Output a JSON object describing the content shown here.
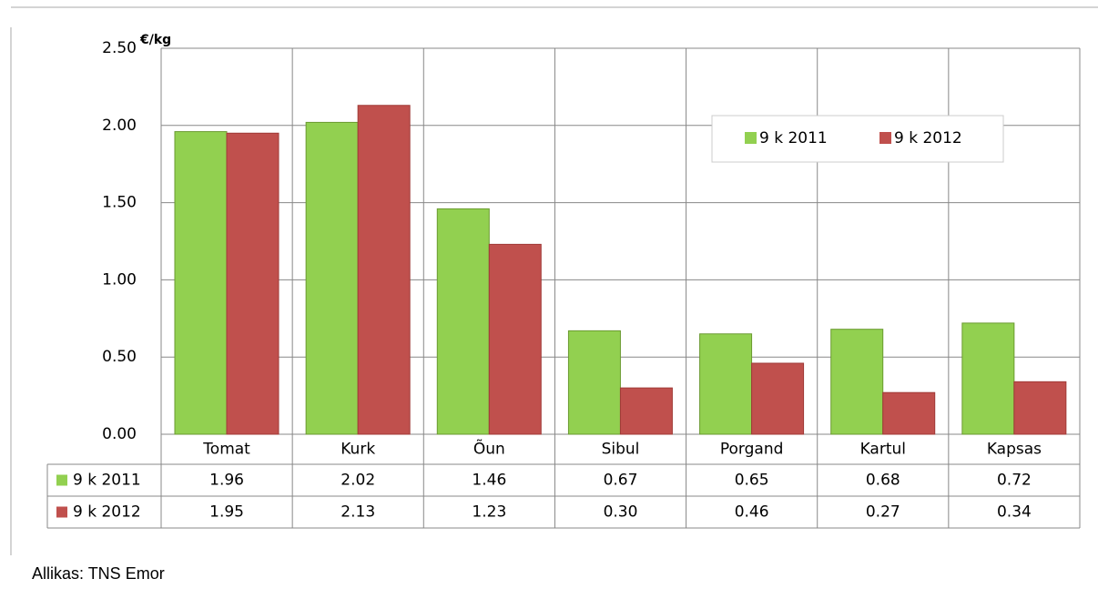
{
  "chart_data": {
    "type": "bar",
    "y_label": "€/kg",
    "categories": [
      "Tomat",
      "Kurk",
      "Õun",
      "Sibul",
      "Porgand",
      "Kartul",
      "Kapsas"
    ],
    "series": [
      {
        "name": "9 k 2011",
        "color": "#92d050",
        "values": [
          1.96,
          2.02,
          1.46,
          0.67,
          0.65,
          0.68,
          0.72
        ],
        "value_labels": [
          "1.96",
          "2.02",
          "1.46",
          "0.67",
          "0.65",
          "0.68",
          "0.72"
        ]
      },
      {
        "name": "9 k 2012",
        "color": "#c0504d",
        "values": [
          1.95,
          2.13,
          1.23,
          0.3,
          0.46,
          0.27,
          0.34
        ],
        "value_labels": [
          "1.95",
          "2.13",
          "1.23",
          "0.30",
          "0.46",
          "0.27",
          "0.34"
        ]
      }
    ],
    "ylim": [
      0,
      2.5
    ],
    "yticks": [
      {
        "value": 0,
        "label": "0.00"
      },
      {
        "value": 0.5,
        "label": "0.50"
      },
      {
        "value": 1,
        "label": "1.00"
      },
      {
        "value": 1.5,
        "label": "1.50"
      },
      {
        "value": 2,
        "label": "2.00"
      },
      {
        "value": 2.5,
        "label": "2.50"
      }
    ],
    "grid": true,
    "source": "Allikas:  TNS Emor"
  }
}
